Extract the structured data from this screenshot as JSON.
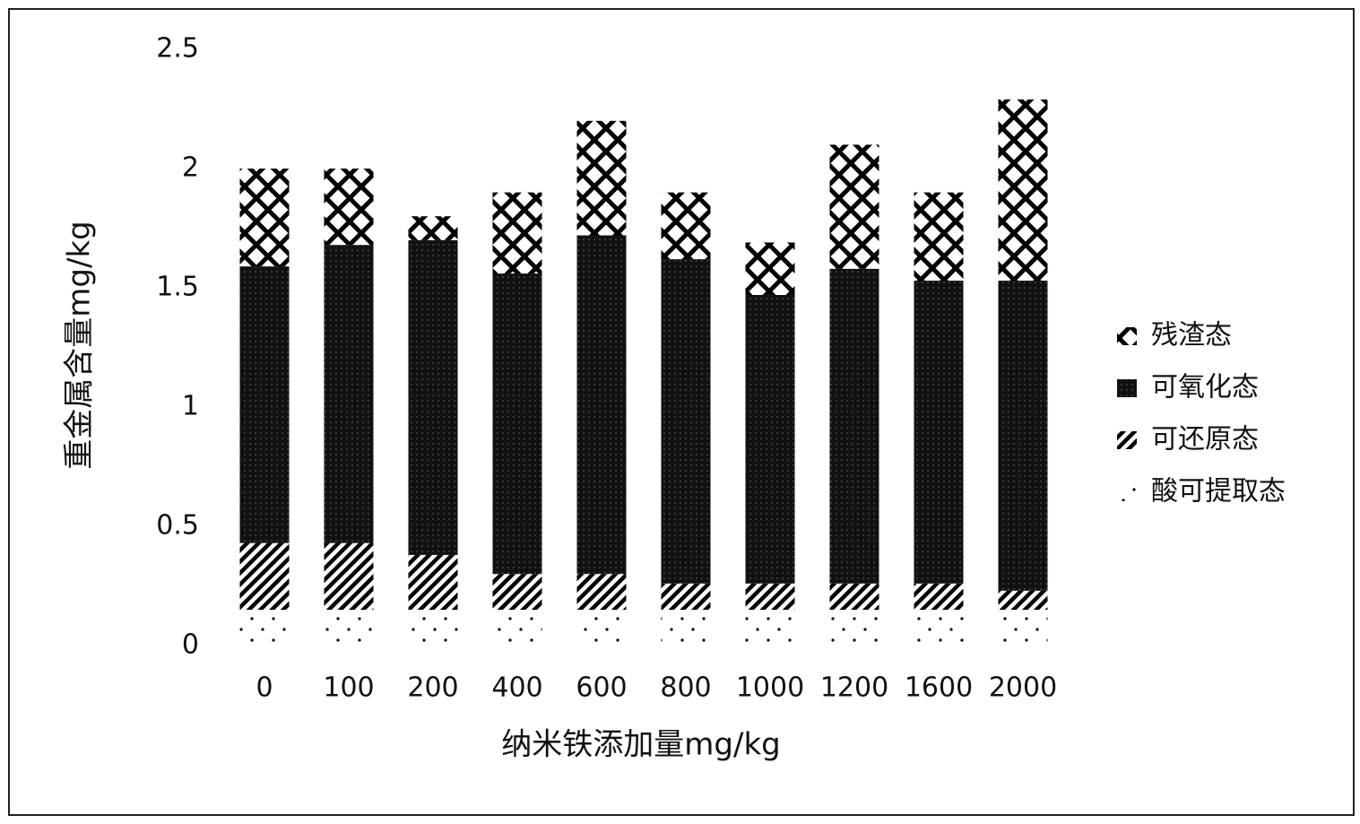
{
  "chart_data": {
    "type": "stacked_bar",
    "x_label": "纳米铁添加量mg/kg",
    "y_label": "重金属含量mg/kg",
    "categories": [
      "0",
      "100",
      "200",
      "400",
      "600",
      "800",
      "1000",
      "1200",
      "1600",
      "2000"
    ],
    "series": [
      {
        "name": "酸可提取态",
        "color": "#000000",
        "pattern": "dots",
        "values": [
          0.15,
          0.15,
          0.15,
          0.15,
          0.15,
          0.15,
          0.15,
          0.15,
          0.15,
          0.15
        ]
      },
      {
        "name": "可还原态",
        "color": "#000000",
        "pattern": "hatch",
        "values": [
          0.28,
          0.28,
          0.23,
          0.15,
          0.15,
          0.11,
          0.11,
          0.11,
          0.11,
          0.08
        ]
      },
      {
        "name": "可氧化态",
        "color": "#000000",
        "pattern": "dense",
        "values": [
          1.16,
          1.25,
          1.32,
          1.26,
          1.42,
          1.36,
          1.21,
          1.32,
          1.27,
          1.3
        ]
      },
      {
        "name": "残渣态",
        "color": "#000000",
        "pattern": "bricks",
        "values": [
          0.41,
          0.32,
          0.1,
          0.34,
          0.48,
          0.28,
          0.22,
          0.52,
          0.37,
          0.76
        ]
      }
    ],
    "ylim": [
      0,
      2.5
    ],
    "yticks": [
      0,
      0.5,
      1,
      1.5,
      2,
      2.5
    ],
    "legend": "right"
  }
}
